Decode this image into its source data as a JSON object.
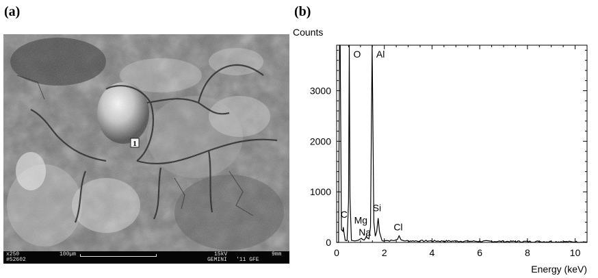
{
  "panels": {
    "a": "(a)",
    "b": "(b)"
  },
  "sem": {
    "magnification": "x250",
    "image_number": "#52602",
    "scale_bar": "100µm",
    "voltage": "15kV",
    "working_distance": "9mm",
    "instrument": "GEMINI",
    "year_lab": "'11 GFE",
    "point_marker": "1"
  },
  "chart_data": {
    "type": "line",
    "title": "",
    "ylabel": "Counts",
    "xlabel": "Energy (keV)",
    "xlim": [
      0,
      10.5
    ],
    "ylim": [
      0,
      3900
    ],
    "xticks": [
      0,
      2,
      4,
      6,
      8,
      10
    ],
    "yticks": [
      0,
      1000,
      2000,
      3000
    ],
    "grid": false,
    "legend": "none",
    "peaks": [
      {
        "element": "C",
        "energy": 0.28,
        "counts": 300
      },
      {
        "element": "O",
        "energy": 0.53,
        "counts": 3900
      },
      {
        "element": "Na",
        "energy": 1.04,
        "counts": 80
      },
      {
        "element": "Mg",
        "energy": 1.25,
        "counts": 130
      },
      {
        "element": "Al",
        "energy": 1.49,
        "counts": 3900
      },
      {
        "element": "Si",
        "energy": 1.74,
        "counts": 480
      },
      {
        "element": "Cl",
        "energy": 2.62,
        "counts": 130
      }
    ],
    "series": [
      {
        "x": [
          0,
          0.08,
          0.12,
          0.15,
          0.2,
          0.26,
          0.28,
          0.3,
          0.36,
          0.44,
          0.5,
          0.53,
          0.56,
          0.62,
          0.75,
          0.9,
          1.0,
          1.04,
          1.08,
          1.15,
          1.22,
          1.25,
          1.28,
          1.35,
          1.42,
          1.49,
          1.56,
          1.62,
          1.68,
          1.74,
          1.8,
          1.9,
          2.1,
          2.4,
          2.55,
          2.62,
          2.7,
          2.9,
          3.5,
          5,
          7,
          9,
          10.5
        ],
        "y": [
          0,
          0,
          3900,
          3900,
          250,
          220,
          300,
          220,
          40,
          35,
          800,
          3900,
          900,
          40,
          30,
          40,
          70,
          80,
          60,
          45,
          90,
          130,
          90,
          70,
          300,
          3900,
          400,
          120,
          220,
          480,
          200,
          40,
          35,
          35,
          60,
          130,
          50,
          30,
          30,
          25,
          20,
          15,
          10
        ]
      }
    ]
  }
}
